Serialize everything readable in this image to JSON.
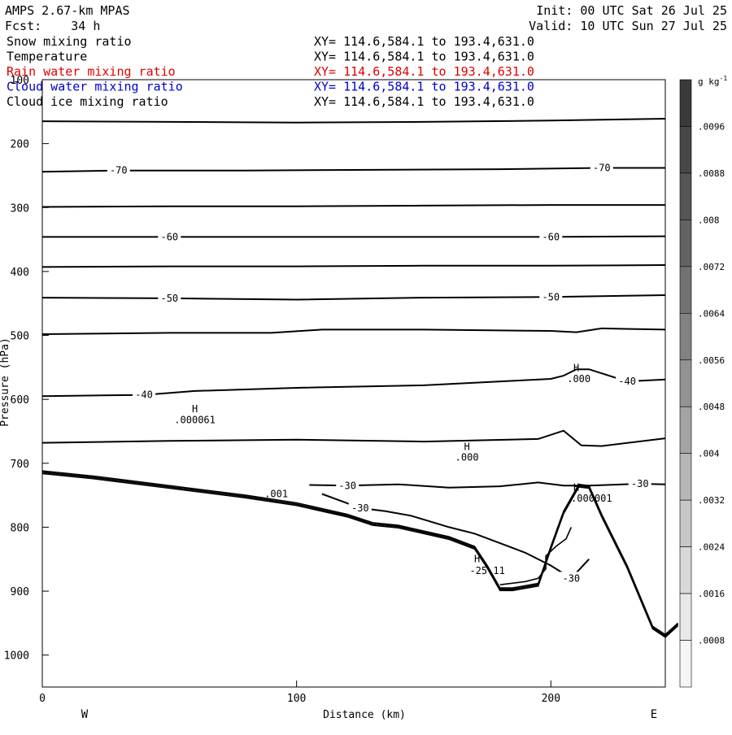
{
  "header": {
    "model": "AMPS 2.67-km MPAS",
    "forecast": "Fcst:    34 h",
    "init": "Init: 00 UTC Sat 26 Jul 25",
    "valid": "Valid: 10 UTC Sun 27 Jul 25"
  },
  "fields": [
    {
      "name": "Snow mixing ratio",
      "xy": "XY= 114.6,584.1 to 193.4,631.0",
      "color": "#000000"
    },
    {
      "name": "Temperature",
      "xy": "XY= 114.6,584.1 to 193.4,631.0",
      "color": "#000000"
    },
    {
      "name": "Rain water mixing ratio",
      "xy": "XY= 114.6,584.1 to 193.4,631.0",
      "color": "#e00000"
    },
    {
      "name": "Cloud water mixing ratio",
      "xy": "XY= 114.6,584.1 to 193.4,631.0",
      "color": "#0000cc"
    },
    {
      "name": "Cloud ice mixing ratio",
      "xy": "XY= 114.6,584.1 to 193.4,631.0",
      "color": "#000000"
    }
  ],
  "chart_data": {
    "type": "contour cross-section",
    "xlabel": "Distance (km)",
    "ylabel": "Pressure (hPa)",
    "xlim": [
      0,
      245
    ],
    "ylim": [
      1050,
      100
    ],
    "y_inverted": true,
    "x_ticks": [
      0,
      100,
      200
    ],
    "y_ticks": [
      100,
      200,
      300,
      400,
      500,
      600,
      700,
      800,
      900,
      1000
    ],
    "x_end_labels": {
      "left": "W",
      "right": "E"
    },
    "temperature_contours": [
      {
        "label": "",
        "points": [
          [
            0,
            165
          ],
          [
            50,
            166
          ],
          [
            100,
            167
          ],
          [
            150,
            166
          ],
          [
            200,
            164
          ],
          [
            245,
            161
          ]
        ]
      },
      {
        "label": "-70",
        "points": [
          [
            0,
            244
          ],
          [
            30,
            242
          ],
          [
            80,
            242
          ],
          [
            130,
            241
          ],
          [
            180,
            240
          ],
          [
            220,
            238
          ],
          [
            245,
            238
          ]
        ]
      },
      {
        "label": "",
        "points": [
          [
            0,
            299
          ],
          [
            50,
            298
          ],
          [
            100,
            298
          ],
          [
            150,
            297
          ],
          [
            200,
            296
          ],
          [
            245,
            296
          ]
        ]
      },
      {
        "label": "-60",
        "points": [
          [
            0,
            346
          ],
          [
            50,
            346
          ],
          [
            100,
            346
          ],
          [
            150,
            346
          ],
          [
            200,
            346
          ],
          [
            245,
            345
          ]
        ]
      },
      {
        "label": "",
        "points": [
          [
            0,
            393
          ],
          [
            50,
            392
          ],
          [
            100,
            392
          ],
          [
            150,
            391
          ],
          [
            200,
            391
          ],
          [
            245,
            390
          ]
        ]
      },
      {
        "label": "-50",
        "points": [
          [
            0,
            441
          ],
          [
            50,
            442
          ],
          [
            100,
            444
          ],
          [
            150,
            441
          ],
          [
            200,
            440
          ],
          [
            245,
            437
          ]
        ]
      },
      {
        "label": "",
        "points": [
          [
            0,
            498
          ],
          [
            50,
            496
          ],
          [
            90,
            496
          ],
          [
            110,
            491
          ],
          [
            150,
            491
          ],
          [
            200,
            493
          ],
          [
            210,
            495
          ],
          [
            220,
            489
          ],
          [
            245,
            491
          ]
        ]
      },
      {
        "label": "-40",
        "points": [
          [
            0,
            595
          ],
          [
            40,
            593
          ],
          [
            60,
            587
          ],
          [
            100,
            582
          ],
          [
            150,
            578
          ],
          [
            185,
            571
          ],
          [
            200,
            568
          ],
          [
            205,
            563
          ],
          [
            210,
            553
          ],
          [
            215,
            553
          ],
          [
            230,
            572
          ],
          [
            245,
            569
          ]
        ]
      },
      {
        "label": "",
        "points": [
          [
            0,
            668
          ],
          [
            50,
            665
          ],
          [
            100,
            663
          ],
          [
            150,
            666
          ],
          [
            195,
            662
          ],
          [
            205,
            649
          ],
          [
            212,
            672
          ],
          [
            220,
            673
          ],
          [
            245,
            661
          ]
        ]
      },
      {
        "label": "-30",
        "points": [
          [
            105,
            734
          ],
          [
            120,
            735
          ],
          [
            140,
            733
          ],
          [
            160,
            738
          ],
          [
            180,
            736
          ],
          [
            195,
            730
          ],
          [
            205,
            735
          ],
          [
            215,
            735
          ],
          [
            235,
            732
          ],
          [
            245,
            733
          ]
        ]
      },
      {
        "label": "-30",
        "points": [
          [
            110,
            748
          ],
          [
            125,
            770
          ],
          [
            135,
            775
          ],
          [
            145,
            782
          ],
          [
            160,
            800
          ],
          [
            170,
            810
          ],
          [
            180,
            825
          ],
          [
            190,
            840
          ],
          [
            200,
            860
          ],
          [
            208,
            880
          ],
          [
            215,
            850
          ]
        ]
      }
    ],
    "terrain_profile": {
      "label": "",
      "points": [
        [
          0,
          712
        ],
        [
          20,
          720
        ],
        [
          50,
          735
        ],
        [
          80,
          750
        ],
        [
          100,
          762
        ],
        [
          120,
          780
        ],
        [
          130,
          793
        ],
        [
          140,
          797
        ],
        [
          160,
          815
        ],
        [
          170,
          830
        ],
        [
          175,
          860
        ],
        [
          180,
          895
        ],
        [
          185,
          895
        ],
        [
          195,
          888
        ],
        [
          200,
          830
        ],
        [
          205,
          775
        ],
        [
          211,
          733
        ],
        [
          215,
          735
        ],
        [
          220,
          780
        ],
        [
          230,
          860
        ],
        [
          240,
          955
        ],
        [
          245,
          968
        ],
        [
          250,
          950
        ]
      ]
    },
    "cloud_ice_contour": {
      "label": "",
      "points": [
        [
          180,
          890
        ],
        [
          190,
          885
        ],
        [
          195,
          880
        ],
        [
          198,
          865
        ],
        [
          198,
          845
        ],
        [
          202,
          830
        ],
        [
          206,
          818
        ],
        [
          208,
          800
        ]
      ]
    },
    "annotations": [
      {
        "text": "H",
        "x": 60,
        "y": 620
      },
      {
        "text": ".000061",
        "x": 60,
        "y": 637
      },
      {
        "text": "H",
        "x": 167,
        "y": 679
      },
      {
        "text": ".000",
        "x": 167,
        "y": 696
      },
      {
        "text": "H",
        "x": 210,
        "y": 556
      },
      {
        "text": ".000",
        "x": 211,
        "y": 573
      },
      {
        "text": "H",
        "x": 210,
        "y": 743
      },
      {
        "text": ".000001",
        "x": 216,
        "y": 760
      },
      {
        "text": "H",
        "x": 171,
        "y": 855
      },
      {
        "text": "-25.11",
        "x": 175,
        "y": 873
      },
      {
        "text": ".001",
        "x": 92,
        "y": 753
      }
    ],
    "colorbar": {
      "unit": "g kg",
      "unit_exponent": "-1",
      "tick_labels": [
        ".0096",
        ".0088",
        ".008",
        ".0072",
        ".0064",
        ".0056",
        ".0048",
        ".004",
        ".0032",
        ".0024",
        ".0016",
        ".0008"
      ],
      "colors": [
        "#3a3a3a",
        "#484848",
        "#555555",
        "#636363",
        "#727272",
        "#828282",
        "#939393",
        "#a4a4a4",
        "#b6b6b6",
        "#c7c7c7",
        "#d8d8d8",
        "#e8e8e8",
        "#f6f6f6"
      ]
    }
  }
}
